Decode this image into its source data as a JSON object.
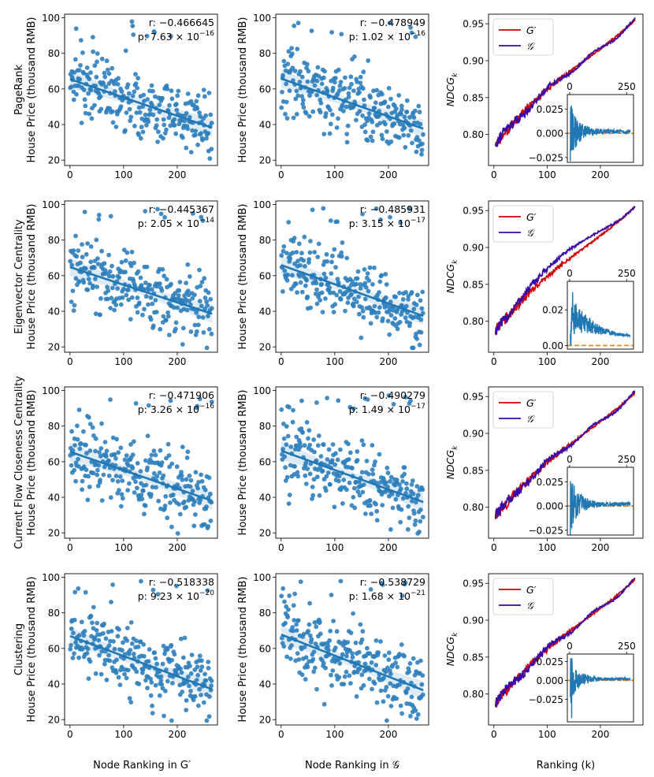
{
  "colors": {
    "scatter": "#2f80bd",
    "regression": "#1f77b4",
    "g_prime": "#d00000",
    "g_cal": "#3a0aa8",
    "inset_line": "#1f77b4",
    "inset_zero": "#ff7f0e"
  },
  "scatter_axes": {
    "x_ticks": [
      0,
      100,
      200
    ],
    "y_ticks": [
      20,
      40,
      60,
      80,
      100
    ],
    "xlim": [
      -10,
      275
    ],
    "ylim": [
      17,
      102
    ],
    "x_max_rank": 265
  },
  "ndcg_axes": {
    "x_ticks": [
      0,
      100,
      200
    ],
    "y_ticks": [
      0.8,
      0.85,
      0.9,
      0.95
    ],
    "y_tick_labels": [
      "0.80",
      "0.85",
      "0.90",
      "0.95"
    ],
    "xlim": [
      -10,
      280
    ],
    "ylim": [
      0.758,
      0.963
    ],
    "ylabel": "NDCG",
    "ylabel_sub": "k",
    "inset_x_tick_labels": [
      "0",
      "250"
    ]
  },
  "legend": {
    "g_prime": "G",
    "g_prime_mark": "′",
    "g_cal": "𝒢"
  },
  "xlabels": {
    "col1": "Node Ranking in G",
    "col1_mark": "′",
    "col2": "Node Ranking in 𝒢",
    "col3": "Ranking (k)"
  },
  "ylabel_common": "House Price (thousand RMB)",
  "chart_data": [
    {
      "type": "scatter",
      "metric": "PageRank",
      "graph": "G'",
      "r_label": "r: −0.466645",
      "p_label": "p: 7.63 × 10",
      "p_exp": "−16",
      "fit": {
        "intercept": 65.5,
        "slope": -0.103
      }
    },
    {
      "type": "scatter",
      "metric": "PageRank",
      "graph": "𝒢",
      "r_label": "r: −0.478949",
      "p_label": "p: 1.02 × 10",
      "p_exp": "−16",
      "fit": {
        "intercept": 65.8,
        "slope": -0.106
      }
    },
    {
      "type": "line",
      "metric": "PageRank",
      "series": [
        "G'",
        "𝒢"
      ],
      "start": 0.79,
      "end": 0.955,
      "inset_y_ticks": [
        -0.025,
        0.0,
        0.025
      ],
      "inset_y_tick_labels": [
        "−0.025",
        "0.000",
        "0.025"
      ],
      "inset_ylim": [
        -0.03,
        0.04
      ]
    },
    {
      "type": "scatter",
      "metric": "Eigenvector Centrality",
      "graph": "G'",
      "r_label": "r: −0.445367",
      "p_label": "p: 2.05 × 10",
      "p_exp": "−14",
      "fit": {
        "intercept": 64.8,
        "slope": -0.099
      }
    },
    {
      "type": "scatter",
      "metric": "Eigenvector Centrality",
      "graph": "𝒢",
      "r_label": "r: −0.485931",
      "p_label": "p: 3.15 × 10",
      "p_exp": "−17",
      "fit": {
        "intercept": 66.0,
        "slope": -0.108
      }
    },
    {
      "type": "line",
      "metric": "Eigenvector Centrality",
      "series": [
        "G'",
        "𝒢"
      ],
      "start": 0.79,
      "end": 0.955,
      "inset_y_ticks": [
        0.0,
        0.02
      ],
      "inset_y_tick_labels": [
        "0.00",
        "0.02"
      ],
      "inset_ylim": [
        -0.002,
        0.036
      ]
    },
    {
      "type": "scatter",
      "metric": "Current Flow Closeness Centrality",
      "graph": "G'",
      "r_label": "r: −0.471906",
      "p_label": "p: 3.26 × 10",
      "p_exp": "−16",
      "fit": {
        "intercept": 65.6,
        "slope": -0.104
      }
    },
    {
      "type": "scatter",
      "metric": "Current Flow Closeness Centrality",
      "graph": "𝒢",
      "r_label": "r: −0.490279",
      "p_label": "p: 1.49 × 10",
      "p_exp": "−17",
      "fit": {
        "intercept": 66.2,
        "slope": -0.109
      }
    },
    {
      "type": "line",
      "metric": "Current Flow Closeness Centrality",
      "series": [
        "G'",
        "𝒢"
      ],
      "start": 0.79,
      "end": 0.955,
      "inset_y_ticks": [
        -0.025,
        0.0,
        0.025
      ],
      "inset_y_tick_labels": [
        "−0.025",
        "0.000",
        "0.025"
      ],
      "inset_ylim": [
        -0.03,
        0.04
      ]
    },
    {
      "type": "scatter",
      "metric": "Clustering",
      "graph": "G'",
      "r_label": "r: −0.518338",
      "p_label": "p: 9.23 × 10",
      "p_exp": "−20",
      "fit": {
        "intercept": 67.0,
        "slope": -0.113
      }
    },
    {
      "type": "scatter",
      "metric": "Clustering",
      "graph": "𝒢",
      "r_label": "r: −0.538729",
      "p_label": "p: 1.68 × 10",
      "p_exp": "−21",
      "fit": {
        "intercept": 67.8,
        "slope": -0.118
      }
    },
    {
      "type": "line",
      "metric": "Clustering",
      "series": [
        "G'",
        "𝒢"
      ],
      "start": 0.79,
      "end": 0.955,
      "inset_y_ticks": [
        -0.025,
        0.0,
        0.025
      ],
      "inset_y_tick_labels": [
        "−0.025",
        "0.000",
        "0.025"
      ],
      "inset_ylim": [
        -0.055,
        0.035
      ]
    }
  ]
}
